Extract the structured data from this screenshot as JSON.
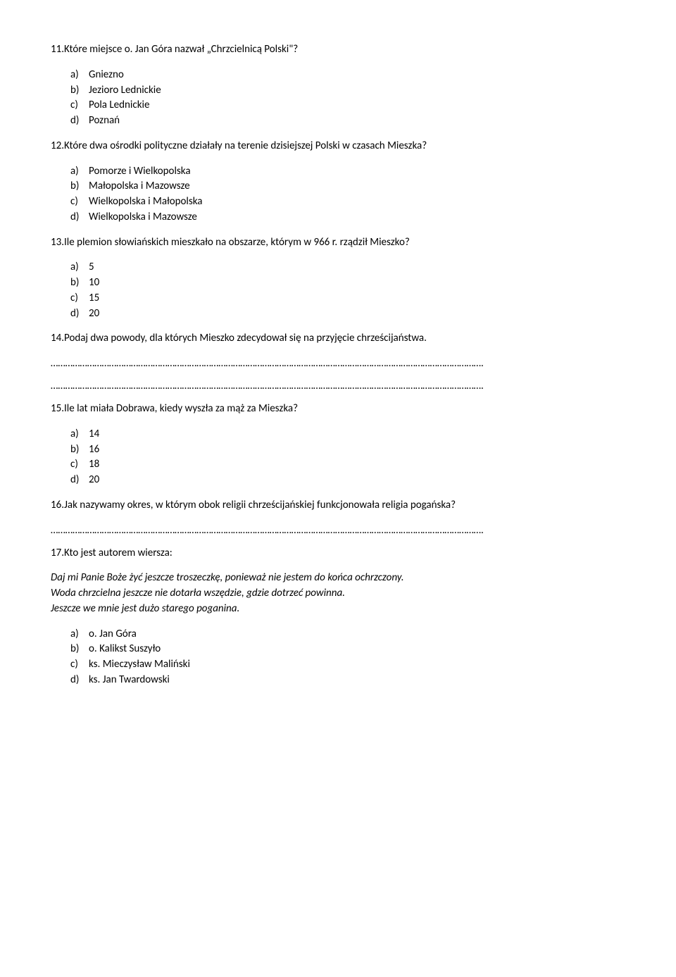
{
  "q11": {
    "text": "11.Które miejsce o. Jan Góra nazwał „Chrzcielnicą Polski\"?",
    "a": "Gniezno",
    "b": "Jezioro Lednickie",
    "c": "Pola Lednickie",
    "d": "Poznań"
  },
  "q12": {
    "text": "12.Które dwa ośrodki polityczne działały na terenie dzisiejszej Polski w czasach Mieszka?",
    "a": "Pomorze i Wielkopolska",
    "b": "Małopolska i Mazowsze",
    "c": "Wielkopolska i Małopolska",
    "d": "Wielkopolska i Mazowsze"
  },
  "q13": {
    "text": "13.Ile plemion słowiańskich mieszkało na obszarze, którym w 966 r. rządził Mieszko?",
    "a": "5",
    "b": "10",
    "c": "15",
    "d": "20"
  },
  "q14": {
    "text": "14.Podaj dwa powody, dla których Mieszko zdecydował się na przyjęcie chrześcijaństwa."
  },
  "q15": {
    "text": "15.Ile lat miała Dobrawa, kiedy wyszła za mąż za Mieszka?",
    "a": "14",
    "b": "16",
    "c": "18",
    "d": "20"
  },
  "q16": {
    "text": "16.Jak nazywamy okres, w którym obok religii chrześcijańskiej funkcjonowała religia pogańska?"
  },
  "q17": {
    "text": "17.Kto jest autorem wiersza:",
    "poem1": "Daj mi Panie Boże żyć jeszcze troszeczkę, ponieważ nie jestem do końca ochrzczony.",
    "poem2": "Woda chrzcielna jeszcze nie dotarła wszędzie, gdzie dotrzeć powinna.",
    "poem3": "Jeszcze we mnie jest dużo starego poganina.",
    "a": "o. Jan Góra",
    "b": "o. Kalikst Suszyło",
    "c": "ks. Mieczysław Maliński",
    "d": "ks. Jan Twardowski"
  },
  "letters": {
    "a": "a)",
    "b": "b)",
    "c": "c)",
    "d": "d)"
  }
}
